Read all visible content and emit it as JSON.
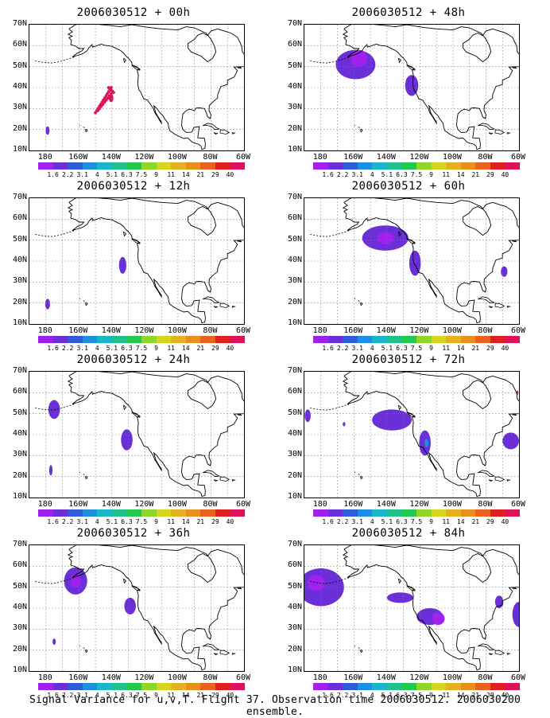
{
  "caption": "Signal Variance for u,v,T. Flight 37. Observation time 2006030512. 2006030200 ensemble.",
  "lat_labels": [
    "70N",
    "60N",
    "50N",
    "40N",
    "30N",
    "20N",
    "10N"
  ],
  "lon_labels": [
    "180",
    "160W",
    "140W",
    "120W",
    "100W",
    "80W",
    "60W"
  ],
  "colorbar": {
    "colors": [
      "#a020f0",
      "#6a2fd6",
      "#2f5bd8",
      "#1e8fe0",
      "#19b5c8",
      "#20c28a",
      "#22c94c",
      "#8fd62a",
      "#d6d61e",
      "#e6b020",
      "#e8901e",
      "#e8621e",
      "#e02020",
      "#e0105a"
    ],
    "labels": [
      "1.6",
      "2.2",
      "3.1",
      "4",
      "5.1",
      "6.3",
      "7.5",
      "9",
      "11",
      "14",
      "21",
      "29",
      "40"
    ]
  },
  "panels": [
    {
      "title": "2006030512 + 00h",
      "blobs": [
        {
          "lon": -140.5,
          "lat": 35,
          "rx": 1.4,
          "ry": 2,
          "lvl": 13
        },
        {
          "lon": -179,
          "lat": 19.5,
          "rx": 1.2,
          "ry": 2,
          "lvl": 1
        }
      ],
      "dots": true
    },
    {
      "title": "2006030512 + 48h",
      "blobs": [
        {
          "lon": -159,
          "lat": 51,
          "rx": 12,
          "ry": 7,
          "lvl": 1
        },
        {
          "lon": -157,
          "lat": 54,
          "rx": 5,
          "ry": 4,
          "lvl": 0
        },
        {
          "lon": -125,
          "lat": 41,
          "rx": 4,
          "ry": 5,
          "lvl": 1
        }
      ]
    },
    {
      "title": "2006030512 + 12h",
      "blobs": [
        {
          "lon": -133.5,
          "lat": 38,
          "rx": 2.2,
          "ry": 4,
          "lvl": 1
        },
        {
          "lon": -179,
          "lat": 19.5,
          "rx": 1.5,
          "ry": 2.5,
          "lvl": 1
        }
      ]
    },
    {
      "title": "2006030512 + 60h",
      "blobs": [
        {
          "lon": -141,
          "lat": 51,
          "rx": 14,
          "ry": 6,
          "lvl": 1
        },
        {
          "lon": -141,
          "lat": 51,
          "rx": 5,
          "ry": 3,
          "lvl": 0
        },
        {
          "lon": -123,
          "lat": 39,
          "rx": 3.5,
          "ry": 6,
          "lvl": 1
        },
        {
          "lon": -69,
          "lat": 35,
          "rx": 2,
          "ry": 2.5,
          "lvl": 1
        }
      ]
    },
    {
      "title": "2006030512 + 24h",
      "blobs": [
        {
          "lon": -175,
          "lat": 52,
          "rx": 3.5,
          "ry": 4.5,
          "lvl": 1
        },
        {
          "lon": -131,
          "lat": 37.5,
          "rx": 3.5,
          "ry": 5,
          "lvl": 1
        },
        {
          "lon": -177,
          "lat": 23,
          "rx": 1,
          "ry": 2.5,
          "lvl": 1
        }
      ]
    },
    {
      "title": "2006030512 + 72h",
      "blobs": [
        {
          "lon": -137,
          "lat": 47,
          "rx": 12,
          "ry": 5,
          "lvl": 1
        },
        {
          "lon": -188,
          "lat": 49,
          "rx": 1.8,
          "ry": 3,
          "lvl": 1
        },
        {
          "lon": -166,
          "lat": 45,
          "rx": 0.8,
          "ry": 1,
          "lvl": 1
        },
        {
          "lon": -117,
          "lat": 36,
          "rx": 3.5,
          "ry": 6,
          "lvl": 1
        },
        {
          "lon": -116,
          "lat": 36,
          "rx": 1.2,
          "ry": 2,
          "lvl": 3
        },
        {
          "lon": -65,
          "lat": 37,
          "rx": 5,
          "ry": 4,
          "lvl": 1
        },
        {
          "lon": -61,
          "lat": 60,
          "rx": 0.6,
          "ry": 1,
          "lvl": 13
        }
      ]
    },
    {
      "title": "2006030512 + 36h",
      "blobs": [
        {
          "lon": -162,
          "lat": 53,
          "rx": 7,
          "ry": 6.5,
          "lvl": 1
        },
        {
          "lon": -162,
          "lat": 53,
          "rx": 3,
          "ry": 3,
          "lvl": 0
        },
        {
          "lon": -129,
          "lat": 41,
          "rx": 3.5,
          "ry": 4,
          "lvl": 1
        },
        {
          "lon": -175,
          "lat": 24,
          "rx": 1,
          "ry": 1.5,
          "lvl": 1
        }
      ]
    },
    {
      "title": "2006030512 + 84h",
      "blobs": [
        {
          "lon": -180,
          "lat": 50,
          "rx": 14,
          "ry": 9,
          "lvl": 1
        },
        {
          "lon": -183,
          "lat": 52,
          "rx": 5,
          "ry": 4,
          "lvl": 0
        },
        {
          "lon": -132,
          "lat": 45,
          "rx": 8,
          "ry": 2.5,
          "lvl": 1
        },
        {
          "lon": -114,
          "lat": 36,
          "rx": 8,
          "ry": 4,
          "lvl": 1
        },
        {
          "lon": -109,
          "lat": 35,
          "rx": 4,
          "ry": 3,
          "lvl": 0
        },
        {
          "lon": -72,
          "lat": 43,
          "rx": 2.5,
          "ry": 3,
          "lvl": 1
        },
        {
          "lon": -60,
          "lat": 37,
          "rx": 4,
          "ry": 6,
          "lvl": 1
        }
      ]
    }
  ]
}
